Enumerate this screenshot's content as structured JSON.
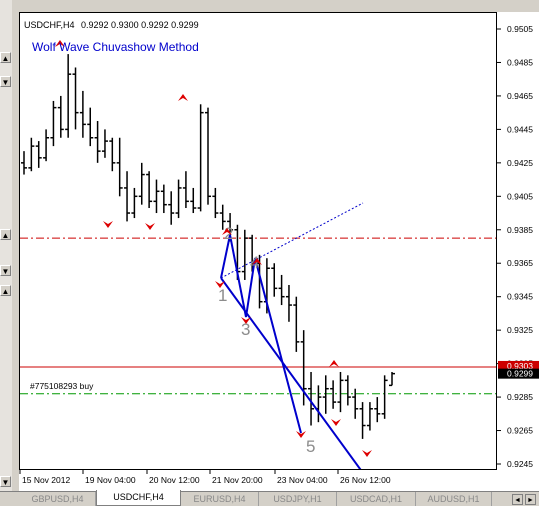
{
  "header": {
    "symbol": "USDCHF,H4",
    "ohlc": "0.9292 0.9300 0.9292 0.9299"
  },
  "chart_title": "Wolf Wave Chuvashow Method",
  "order_label": "#775108293 buy",
  "price_axis": {
    "ticks": [
      "0.9505",
      "0.9485",
      "0.9465",
      "0.9445",
      "0.9425",
      "0.9405",
      "0.9385",
      "0.9365",
      "0.9345",
      "0.9325",
      "0.9305",
      "0.9285",
      "0.9265",
      "0.9245"
    ],
    "current_price": "0.9299",
    "red_line_price": "0.9303"
  },
  "time_axis": {
    "labels": [
      "15 Nov 2012",
      "19 Nov 04:00",
      "20 Nov 12:00",
      "21 Nov 20:00",
      "23 Nov 04:00",
      "26 Nov 12:00"
    ]
  },
  "wave_points": [
    "1",
    "2",
    "3",
    "4",
    "5"
  ],
  "tabs": [
    {
      "label": "GBPUSD,H4",
      "active": false
    },
    {
      "label": "USDCHF,H4",
      "active": true
    },
    {
      "label": "EURUSD,H4",
      "active": false
    },
    {
      "label": "USDJPY,H1",
      "active": false
    },
    {
      "label": "USDCAD,H1",
      "active": false
    },
    {
      "label": "AUDUSD,H1",
      "active": false
    }
  ],
  "left_gutter_buttons": [
    "▲",
    "▼",
    "▲",
    "▼",
    "▲",
    "▼"
  ],
  "tab_nav": {
    "prev": "◄",
    "next": "►"
  },
  "colors": {
    "wave_lines": "#0000cc",
    "stop_line": "#cc0000",
    "target_line": "#009900",
    "fractal_arrows": "#dd0000",
    "title": "#0000cc"
  },
  "chart_data": {
    "type": "candlestick-ohlc",
    "symbol": "USDCHF",
    "timeframe": "H4",
    "y_range": [
      0.924,
      0.951
    ],
    "horizontal_lines": [
      {
        "price": 0.938,
        "style": "dash-dot",
        "color": "#cc0000"
      },
      {
        "price": 0.9303,
        "style": "solid",
        "color": "#cc0000"
      },
      {
        "price": 0.9287,
        "style": "dash-dot",
        "color": "#009900"
      }
    ],
    "bars": [
      [
        0.9425,
        0.9432,
        0.9418,
        0.9422
      ],
      [
        0.9422,
        0.944,
        0.942,
        0.9435
      ],
      [
        0.9435,
        0.9438,
        0.9422,
        0.9428
      ],
      [
        0.9428,
        0.9445,
        0.9426,
        0.944
      ],
      [
        0.944,
        0.9462,
        0.9435,
        0.9458
      ],
      [
        0.9458,
        0.9465,
        0.944,
        0.9445
      ],
      [
        0.9445,
        0.949,
        0.944,
        0.9478
      ],
      [
        0.9478,
        0.9482,
        0.9445,
        0.9455
      ],
      [
        0.9455,
        0.9468,
        0.944,
        0.9448
      ],
      [
        0.9448,
        0.9458,
        0.9435,
        0.944
      ],
      [
        0.944,
        0.945,
        0.9425,
        0.9432
      ],
      [
        0.9432,
        0.9445,
        0.9428,
        0.9438
      ],
      [
        0.9438,
        0.944,
        0.942,
        0.9425
      ],
      [
        0.9425,
        0.944,
        0.9405,
        0.941
      ],
      [
        0.941,
        0.942,
        0.939,
        0.9395
      ],
      [
        0.9395,
        0.941,
        0.9392,
        0.9405
      ],
      [
        0.9405,
        0.9425,
        0.94,
        0.9418
      ],
      [
        0.9418,
        0.942,
        0.9398,
        0.9402
      ],
      [
        0.9402,
        0.9415,
        0.9395,
        0.9408
      ],
      [
        0.9408,
        0.9412,
        0.9395,
        0.94
      ],
      [
        0.94,
        0.9408,
        0.9388,
        0.9395
      ],
      [
        0.9395,
        0.9415,
        0.9392,
        0.941
      ],
      [
        0.941,
        0.942,
        0.9398,
        0.9402
      ],
      [
        0.9402,
        0.941,
        0.9395,
        0.9398
      ],
      [
        0.9398,
        0.946,
        0.9396,
        0.9455
      ],
      [
        0.9455,
        0.9458,
        0.94,
        0.9405
      ],
      [
        0.9405,
        0.941,
        0.9392,
        0.9395
      ],
      [
        0.9395,
        0.94,
        0.9385,
        0.939
      ],
      [
        0.939,
        0.9395,
        0.9378,
        0.9385
      ],
      [
        0.9385,
        0.9388,
        0.9355,
        0.936
      ],
      [
        0.936,
        0.9385,
        0.9355,
        0.938
      ],
      [
        0.938,
        0.9382,
        0.936,
        0.9365
      ],
      [
        0.9365,
        0.937,
        0.9338,
        0.9342
      ],
      [
        0.9342,
        0.9368,
        0.9335,
        0.9362
      ],
      [
        0.9362,
        0.9365,
        0.9345,
        0.935
      ],
      [
        0.935,
        0.9358,
        0.934,
        0.9345
      ],
      [
        0.9345,
        0.9352,
        0.933,
        0.934
      ],
      [
        0.934,
        0.9345,
        0.9312,
        0.9318
      ],
      [
        0.9318,
        0.9325,
        0.928,
        0.929
      ],
      [
        0.929,
        0.93,
        0.9268,
        0.9278
      ],
      [
        0.9278,
        0.9292,
        0.927,
        0.9285
      ],
      [
        0.9285,
        0.9298,
        0.9275,
        0.929
      ],
      [
        0.929,
        0.9295,
        0.9278,
        0.9282
      ],
      [
        0.9282,
        0.93,
        0.9276,
        0.9295
      ],
      [
        0.9295,
        0.9298,
        0.928,
        0.9285
      ],
      [
        0.9285,
        0.929,
        0.9272,
        0.9278
      ],
      [
        0.9278,
        0.9282,
        0.926,
        0.9268
      ],
      [
        0.9268,
        0.9282,
        0.9265,
        0.9278
      ],
      [
        0.9278,
        0.9285,
        0.927,
        0.9275
      ],
      [
        0.9275,
        0.9298,
        0.9272,
        0.9295
      ],
      [
        0.9292,
        0.93,
        0.9292,
        0.9299
      ]
    ]
  }
}
